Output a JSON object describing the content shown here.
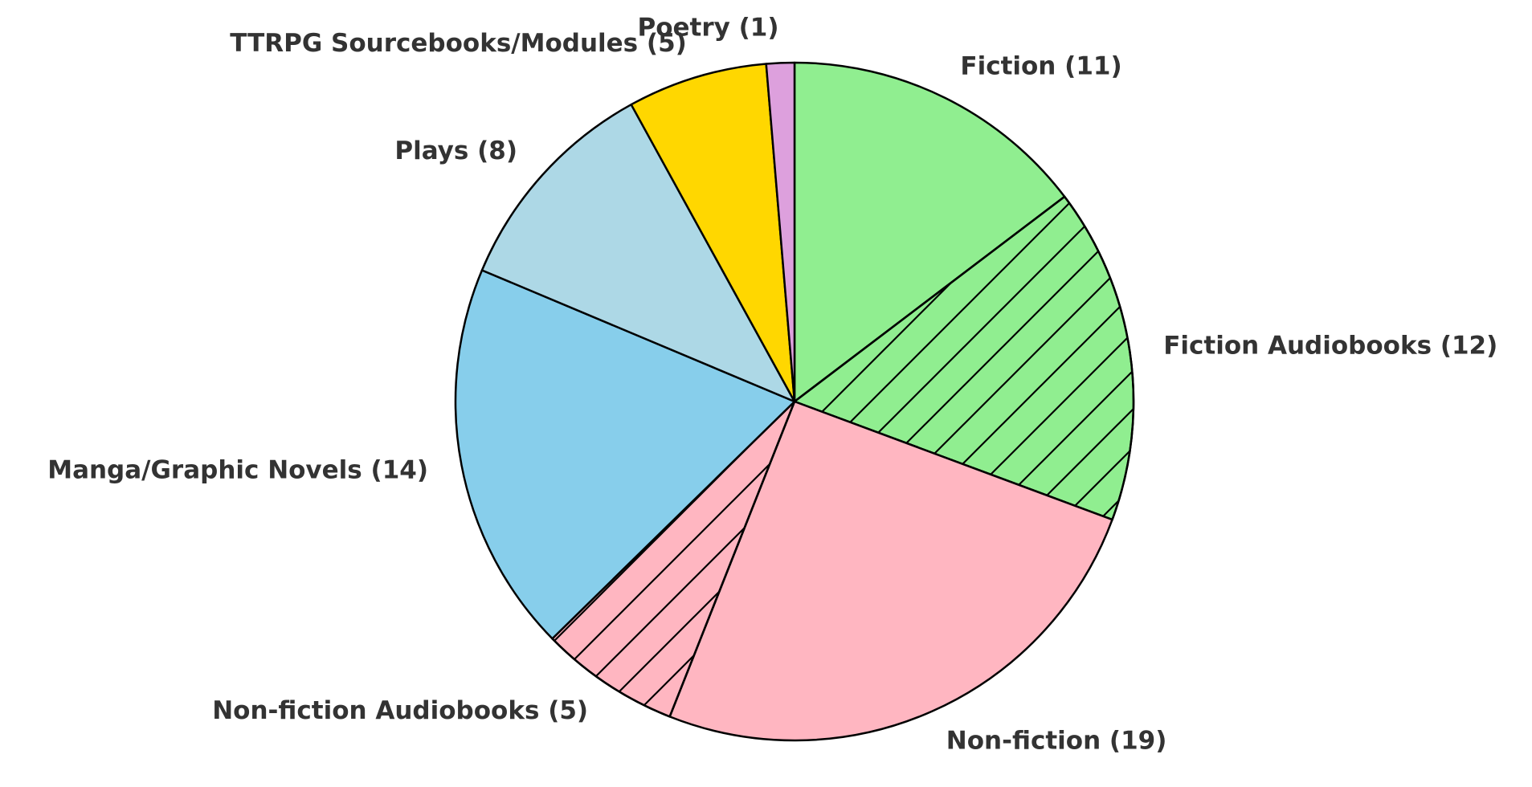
{
  "chart_data": {
    "type": "pie",
    "start_angle_deg": 90,
    "direction": "clockwise",
    "slices": [
      {
        "label": "Fiction (11)",
        "category": "Fiction",
        "value": 11,
        "color": "#90EE90",
        "hatch": false
      },
      {
        "label": "Fiction Audiobooks (12)",
        "category": "Fiction Audiobooks",
        "value": 12,
        "color": "#90EE90",
        "hatch": true
      },
      {
        "label": "Non-fiction (19)",
        "category": "Non-fiction",
        "value": 19,
        "color": "#FFB6C1",
        "hatch": false
      },
      {
        "label": "Non-fiction Audiobooks (5)",
        "category": "Non-fiction Audiobooks",
        "value": 5,
        "color": "#FFB6C1",
        "hatch": true
      },
      {
        "label": "Manga/Graphic Novels (14)",
        "category": "Manga/Graphic Novels",
        "value": 14,
        "color": "#87CEEB",
        "hatch": false
      },
      {
        "label": "Plays (8)",
        "category": "Plays",
        "value": 8,
        "color": "#ADD8E6",
        "hatch": false
      },
      {
        "label": "TTRPG Sourcebooks/Modules (5)",
        "category": "TTRPG Sourcebooks/Modules",
        "value": 5,
        "color": "#FFD700",
        "hatch": false
      },
      {
        "label": "Poetry (1)",
        "category": "Poetry",
        "value": 1,
        "color": "#DDA0DD",
        "hatch": false
      }
    ],
    "label_color": "#333333",
    "edge_color": "#000000"
  }
}
